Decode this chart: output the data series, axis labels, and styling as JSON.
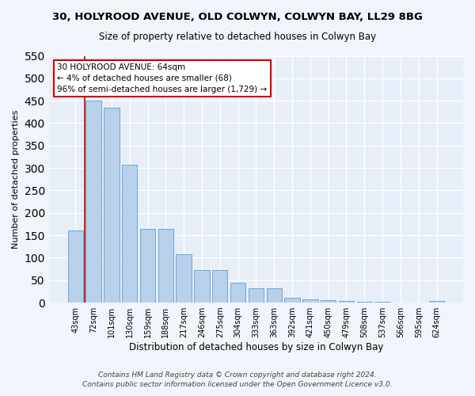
{
  "title": "30, HOLYROOD AVENUE, OLD COLWYN, COLWYN BAY, LL29 8BG",
  "subtitle": "Size of property relative to detached houses in Colwyn Bay",
  "xlabel": "Distribution of detached houses by size in Colwyn Bay",
  "ylabel": "Number of detached properties",
  "categories": [
    "43sqm",
    "72sqm",
    "101sqm",
    "130sqm",
    "159sqm",
    "188sqm",
    "217sqm",
    "246sqm",
    "275sqm",
    "304sqm",
    "333sqm",
    "363sqm",
    "392sqm",
    "421sqm",
    "450sqm",
    "479sqm",
    "508sqm",
    "537sqm",
    "566sqm",
    "595sqm",
    "624sqm"
  ],
  "values": [
    160,
    450,
    435,
    308,
    165,
    165,
    108,
    73,
    73,
    45,
    32,
    32,
    10,
    8,
    5,
    3,
    2,
    2,
    1,
    1,
    3
  ],
  "bar_color": "#b8d0ea",
  "bar_edge_color": "#6aaad4",
  "annotation_title": "30 HOLYROOD AVENUE: 64sqm",
  "annotation_line2": "← 4% of detached houses are smaller (68)",
  "annotation_line3": "96% of semi-detached houses are larger (1,729) →",
  "annotation_box_color": "#ffffff",
  "annotation_box_edge": "#cc0000",
  "vline_color": "#cc0000",
  "ylim": [
    0,
    550
  ],
  "yticks": [
    0,
    50,
    100,
    150,
    200,
    250,
    300,
    350,
    400,
    450,
    500,
    550
  ],
  "footnote1": "Contains HM Land Registry data © Crown copyright and database right 2024.",
  "footnote2": "Contains public sector information licensed under the Open Government Licence v3.0.",
  "background_color": "#f0f4fb",
  "plot_background": "#e8eef8"
}
